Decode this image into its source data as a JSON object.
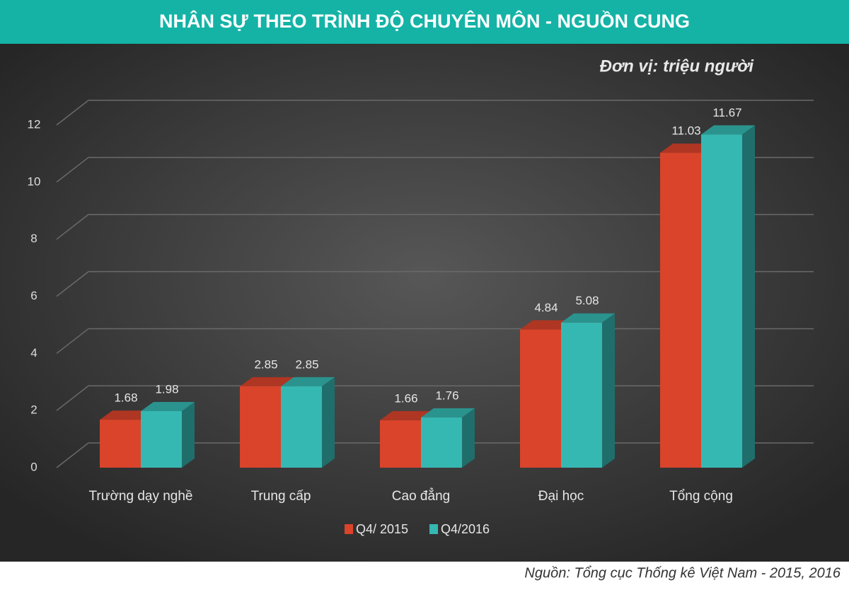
{
  "chart_data": {
    "type": "bar3d",
    "title": "NHÂN SỰ THEO TRÌNH ĐỘ CHUYÊN MÔN  - NGUỒN CUNG",
    "subtitle": "Đơn vị: triệu người",
    "source": "Nguồn: Tổng cục Thống kê Việt Nam - 2015, 2016",
    "categories": [
      "Trường dạy nghề",
      "Trung cấp",
      "Cao đẳng",
      "Đại học",
      "Tổng cộng"
    ],
    "series": [
      {
        "name": "Q4/ 2015",
        "color": "#d9442b",
        "values": [
          1.68,
          2.85,
          1.66,
          4.84,
          11.03
        ]
      },
      {
        "name": "Q4/2016",
        "color": "#36b8b2",
        "values": [
          1.98,
          2.85,
          1.76,
          5.08,
          11.67
        ]
      }
    ],
    "ylim": [
      0,
      12
    ],
    "yticks": [
      0,
      2,
      4,
      6,
      8,
      10,
      12
    ],
    "grid": true,
    "legend": "bottom"
  }
}
